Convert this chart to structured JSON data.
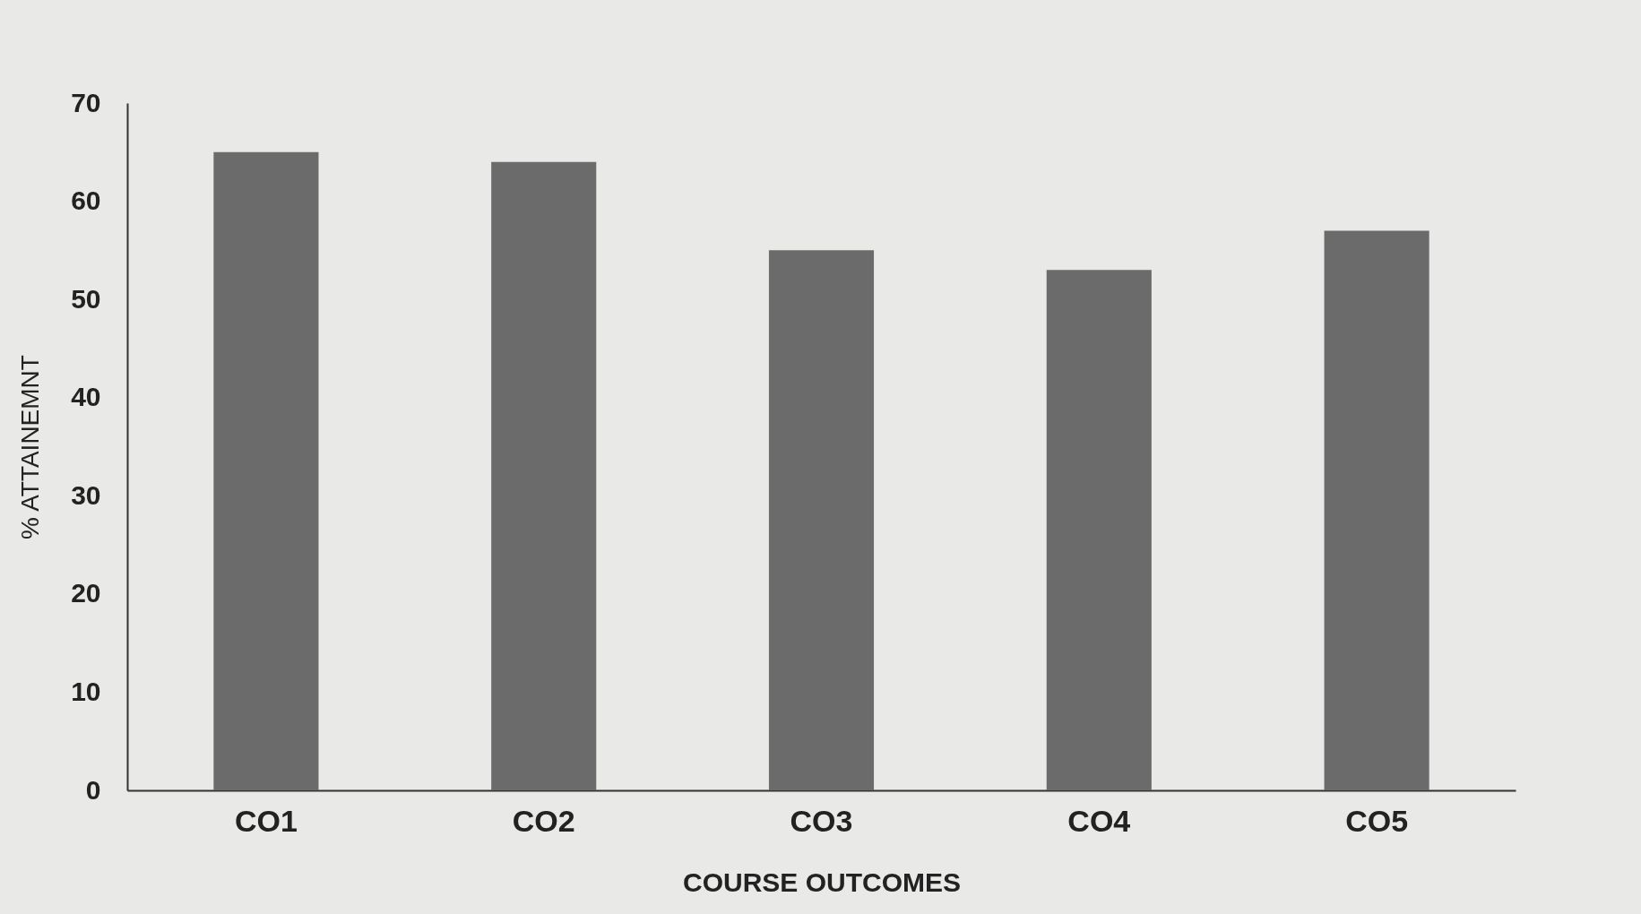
{
  "chart_data": {
    "type": "bar",
    "xlabel": "COURSE OUTCOMES",
    "ylabel": "% ATTAINEMNT",
    "categories": [
      "CO1",
      "CO2",
      "CO3",
      "CO4",
      "CO5"
    ],
    "values": [
      65,
      64,
      55,
      53,
      57
    ],
    "color": "#6b6b6b",
    "ylim": [
      0,
      70
    ],
    "yticks": [
      0,
      10,
      20,
      30,
      40,
      50,
      60,
      70
    ],
    "grid": false
  }
}
